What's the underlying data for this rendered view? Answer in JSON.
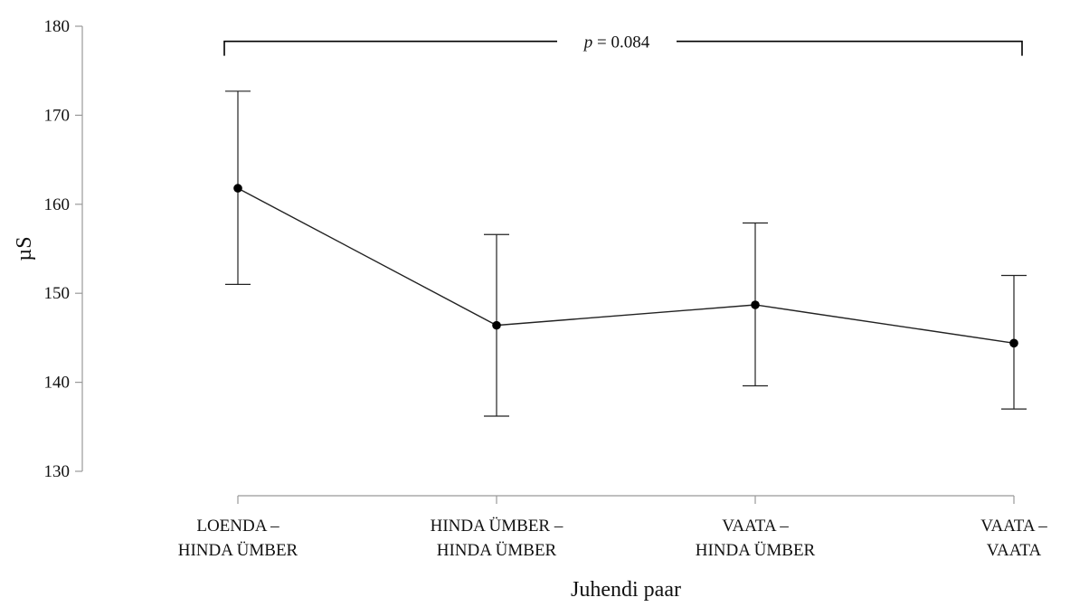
{
  "chart_data": {
    "type": "line",
    "title": "",
    "xlabel": "Juhendi paar",
    "ylabel": "µS",
    "ylim": [
      130,
      180
    ],
    "yticks": [
      130,
      140,
      150,
      160,
      170,
      180
    ],
    "grid": false,
    "categories": [
      [
        "LOENDA –",
        "HINDA ÜMBER"
      ],
      [
        "HINDA ÜMBER –",
        "HINDA ÜMBER"
      ],
      [
        "VAATA –",
        "HINDA ÜMBER"
      ],
      [
        "VAATA –",
        "VAATA"
      ]
    ],
    "series": [
      {
        "values": [
          161.8,
          146.4,
          148.7,
          144.4
        ],
        "error_low": [
          151.0,
          136.2,
          139.6,
          137.0
        ],
        "error_high": [
          172.7,
          156.6,
          157.9,
          152.0
        ]
      }
    ],
    "annotation": {
      "text_italic": "p",
      "text_rest": " = 0.084",
      "from_category": 0,
      "to_category": 3,
      "level": 178
    },
    "colors": {
      "line": "#222222",
      "marker": "#000000",
      "axis": "#999999"
    }
  }
}
